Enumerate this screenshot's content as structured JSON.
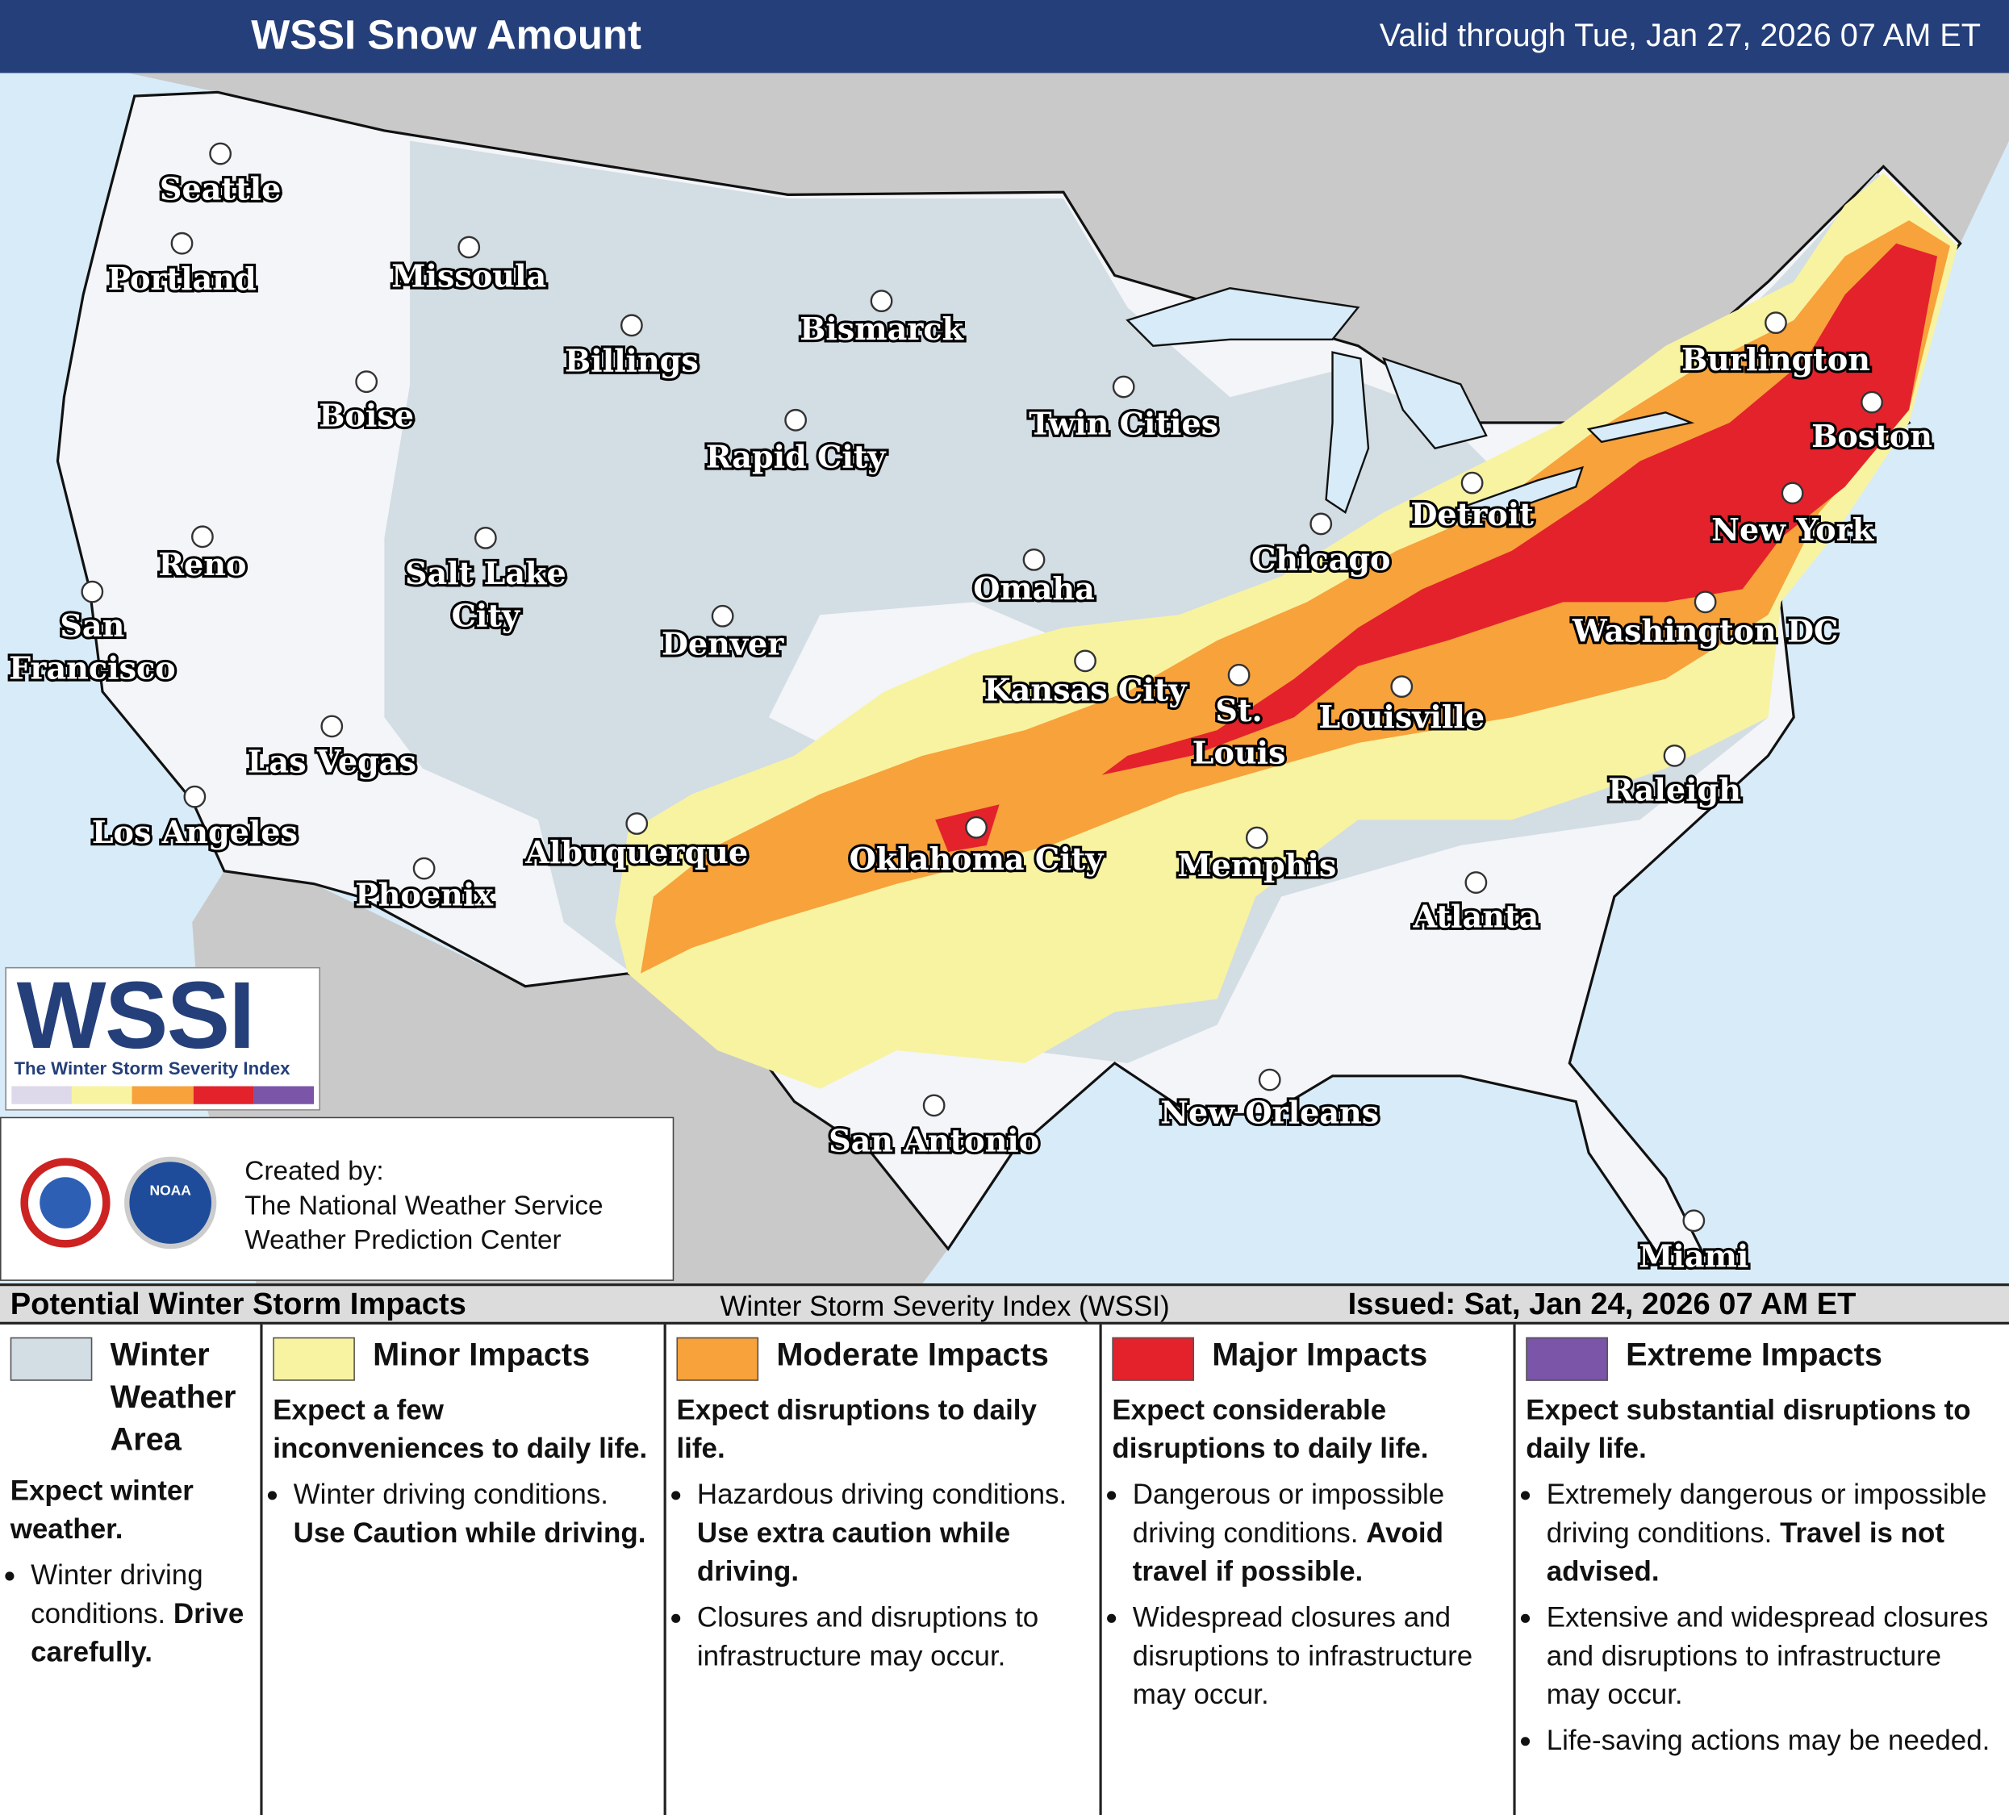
{
  "header": {
    "title": "WSSI Snow Amount",
    "valid": "Valid through Tue, Jan 27, 2026 07 AM ET"
  },
  "cities": [
    {
      "lines": [
        "Seattle"
      ]
    },
    {
      "lines": [
        "Portland"
      ]
    },
    {
      "lines": [
        "Missoula"
      ]
    },
    {
      "lines": [
        "Billings"
      ]
    },
    {
      "lines": [
        "Bismarck"
      ]
    },
    {
      "lines": [
        "Boise"
      ]
    },
    {
      "lines": [
        "Rapid City"
      ]
    },
    {
      "lines": [
        "Twin Cities"
      ]
    },
    {
      "lines": [
        "Reno"
      ]
    },
    {
      "lines": [
        "Salt Lake",
        "City"
      ]
    },
    {
      "lines": [
        "Omaha"
      ]
    },
    {
      "lines": [
        "Chicago"
      ]
    },
    {
      "lines": [
        "Detroit"
      ]
    },
    {
      "lines": [
        "Burlington"
      ]
    },
    {
      "lines": [
        "Boston"
      ]
    },
    {
      "lines": [
        "New York"
      ]
    },
    {
      "lines": [
        "San",
        "Francisco"
      ]
    },
    {
      "lines": [
        "Denver"
      ]
    },
    {
      "lines": [
        "Kansas City"
      ]
    },
    {
      "lines": [
        "St.",
        "Louis"
      ]
    },
    {
      "lines": [
        "Louisville"
      ]
    },
    {
      "lines": [
        "Washington DC"
      ]
    },
    {
      "lines": [
        "Las Vegas"
      ]
    },
    {
      "lines": [
        "Los Angeles"
      ]
    },
    {
      "lines": [
        "Albuquerque"
      ]
    },
    {
      "lines": [
        "Oklahoma City"
      ]
    },
    {
      "lines": [
        "Memphis"
      ]
    },
    {
      "lines": [
        "Raleigh"
      ]
    },
    {
      "lines": [
        "Phoenix"
      ]
    },
    {
      "lines": [
        "Atlanta"
      ]
    },
    {
      "lines": [
        "San Antonio"
      ]
    },
    {
      "lines": [
        "New Orleans"
      ]
    },
    {
      "lines": [
        "Miami"
      ]
    }
  ],
  "logo": {
    "text": "WSSI",
    "tagline": "The Winter Storm Severity Index",
    "agency": "NOAA"
  },
  "credit": {
    "lines": [
      "Created by:",
      "The National Weather Service",
      "Weather Prediction Center"
    ]
  },
  "legend_bar": {
    "title": "Potential Winter Storm Impacts",
    "index": "Winter Storm Severity Index (WSSI)",
    "issued": "Issued: Sat, Jan 24, 2026 07 AM ET"
  },
  "categories": [
    {
      "name": "Winter Weather Area",
      "color": "#d3dde4",
      "summary": "Expect winter weather.",
      "bullets": [
        {
          "text": "Winter driving conditions.",
          "bold": "Drive carefully."
        }
      ]
    },
    {
      "name": "Minor Impacts",
      "color": "#f8f3a1",
      "summary": "Expect a few inconveniences to daily life.",
      "bullets": [
        {
          "text": "Winter driving conditions.",
          "bold": "Use Caution while driving."
        }
      ]
    },
    {
      "name": "Moderate Impacts",
      "color": "#f7a23b",
      "summary": "Expect disruptions to daily life.",
      "bullets": [
        {
          "text": "Hazardous driving conditions.",
          "bold": "Use extra caution while driving."
        },
        {
          "text": "Closures and disruptions to infrastructure may occur."
        }
      ]
    },
    {
      "name": "Major Impacts",
      "color": "#e3222c",
      "summary": "Expect considerable disruptions to daily life.",
      "bullets": [
        {
          "text": "Dangerous or impossible driving conditions.",
          "bold": "Avoid travel if possible."
        },
        {
          "text": "Widespread closures and disruptions to infrastructure may occur."
        }
      ]
    },
    {
      "name": "Extreme Impacts",
      "color": "#7a55a8",
      "summary": "Expect substantial disruptions to daily life.",
      "bullets": [
        {
          "text": "Extremely dangerous or impossible driving conditions.",
          "bold": "Travel is not advised."
        },
        {
          "text": "Extensive and widespread closures and disruptions to infrastructure may occur."
        },
        {
          "text": "Life-saving actions may be needed."
        }
      ]
    }
  ]
}
